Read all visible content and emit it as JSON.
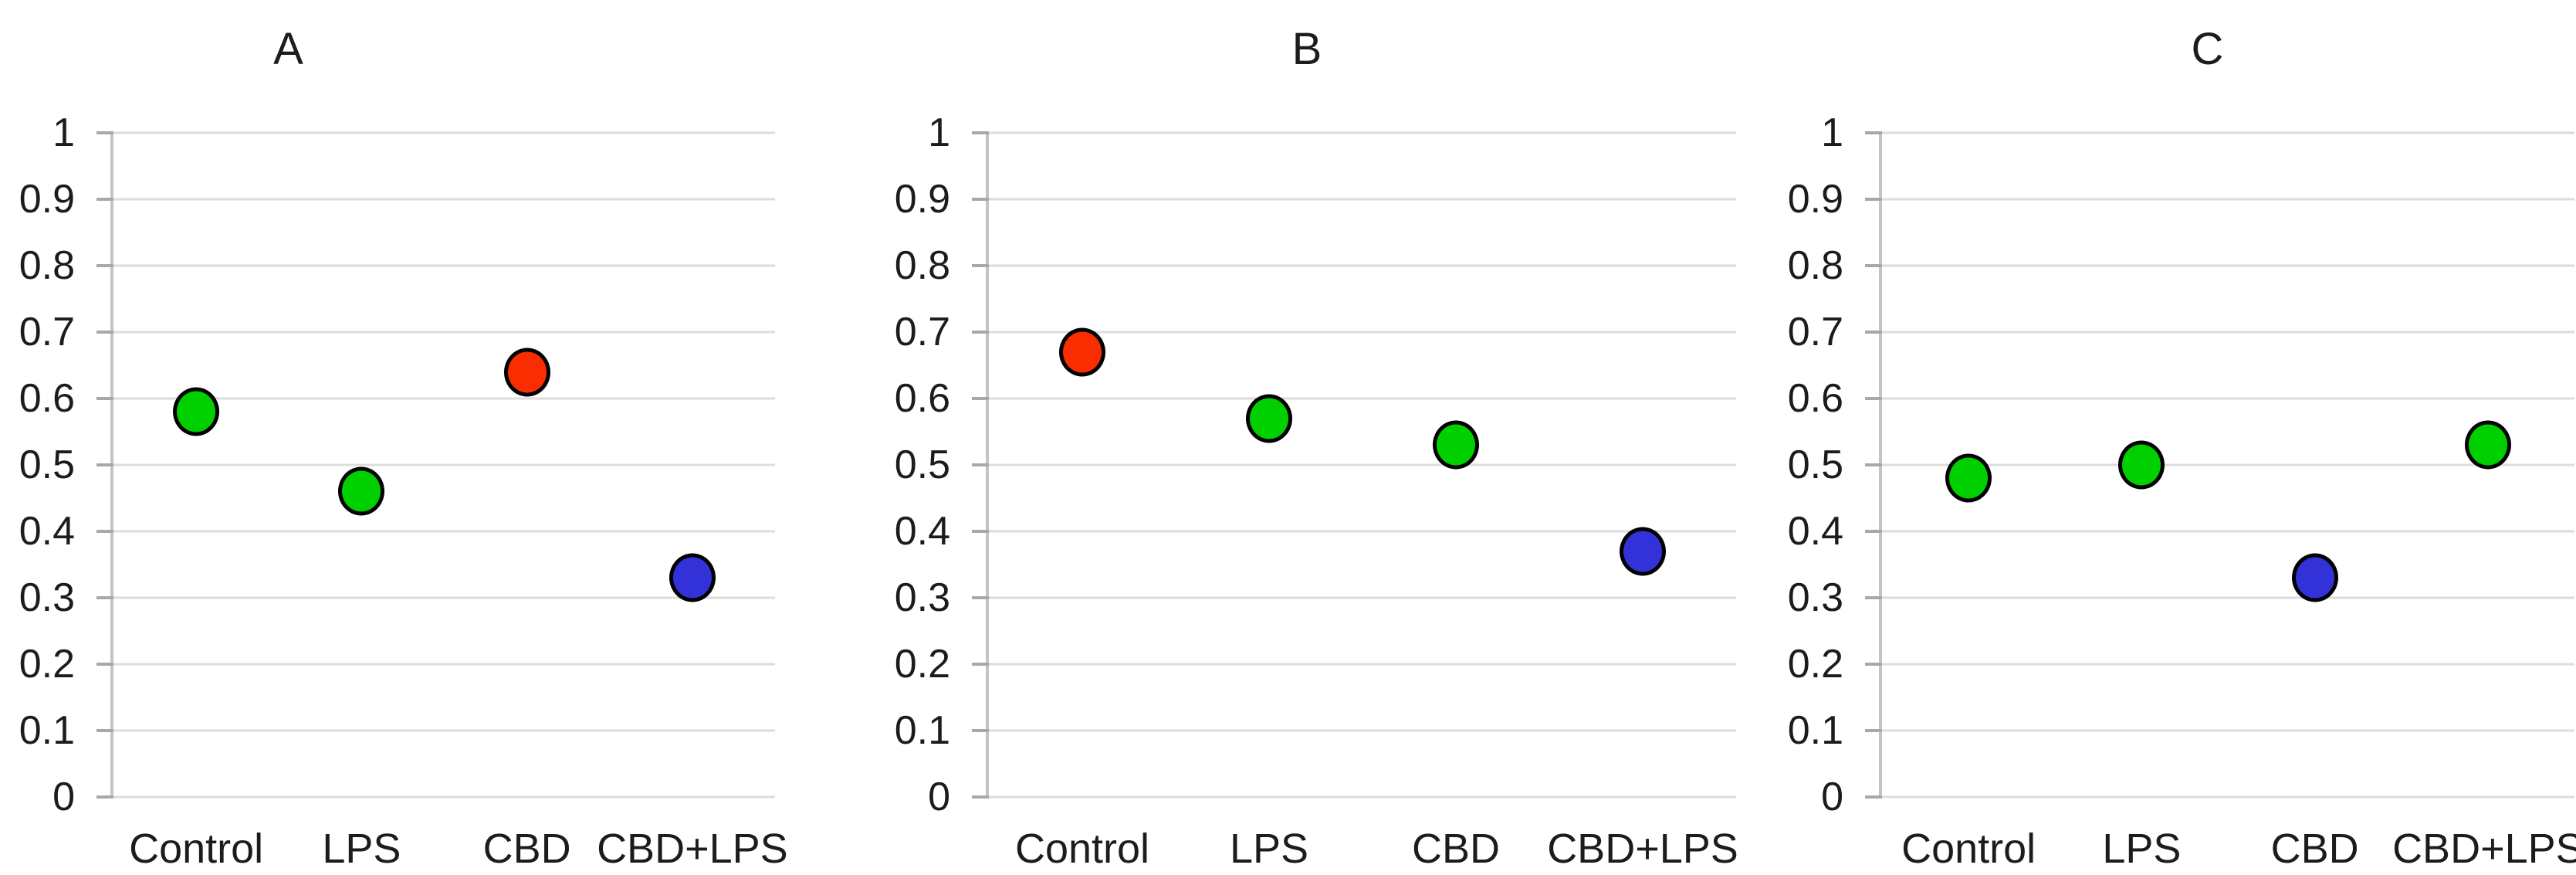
{
  "figure": {
    "background": "#ffffff",
    "text_color": "#1c1c1c",
    "grid_color": "#dcdcdc",
    "axis_color": "#c4c4c4",
    "tick_color": "#a8a8a8",
    "marker_outline": "#000000",
    "palette": {
      "green": "#00d000",
      "red": "#fa2d00",
      "blue": "#3232d8"
    }
  },
  "chart_data": [
    {
      "type": "scatter",
      "title": "A",
      "categories": [
        "Control",
        "LPS",
        "CBD",
        "CBD+LPS"
      ],
      "values": [
        0.58,
        0.46,
        0.64,
        0.33
      ],
      "point_colors": [
        "#00d000",
        "#00d000",
        "#fa2d00",
        "#3232d8"
      ],
      "xlabel": "",
      "ylabel": "",
      "ylim": [
        0,
        1
      ],
      "y_ticks": [
        "0",
        "0.1",
        "0.2",
        "0.3",
        "0.4",
        "0.5",
        "0.6",
        "0.7",
        "0.8",
        "0.9",
        "1"
      ],
      "grid": "horizontal",
      "legend": "none"
    },
    {
      "type": "scatter",
      "title": "B",
      "categories": [
        "Control",
        "LPS",
        "CBD",
        "CBD+LPS"
      ],
      "values": [
        0.67,
        0.57,
        0.53,
        0.37
      ],
      "point_colors": [
        "#fa2d00",
        "#00d000",
        "#00d000",
        "#3232d8"
      ],
      "xlabel": "",
      "ylabel": "",
      "ylim": [
        0,
        1
      ],
      "y_ticks": [
        "0",
        "0.1",
        "0.2",
        "0.3",
        "0.4",
        "0.5",
        "0.6",
        "0.7",
        "0.8",
        "0.9",
        "1"
      ],
      "grid": "horizontal",
      "legend": "none"
    },
    {
      "type": "scatter",
      "title": "C",
      "categories": [
        "Control",
        "LPS",
        "CBD",
        "CBD+LPS"
      ],
      "values": [
        0.48,
        0.5,
        0.33,
        0.53
      ],
      "point_colors": [
        "#00d000",
        "#00d000",
        "#3232d8",
        "#00d000"
      ],
      "xlabel": "",
      "ylabel": "",
      "ylim": [
        0,
        1
      ],
      "y_ticks": [
        "0",
        "0.1",
        "0.2",
        "0.3",
        "0.4",
        "0.5",
        "0.6",
        "0.7",
        "0.8",
        "0.9",
        "1"
      ],
      "grid": "horizontal",
      "legend": "none"
    }
  ]
}
